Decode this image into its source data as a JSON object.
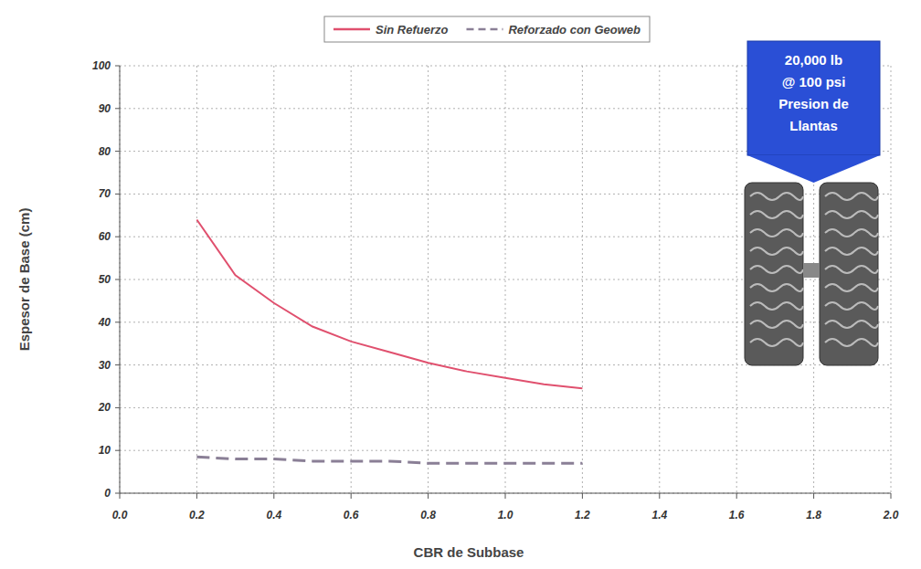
{
  "chart_data": {
    "type": "line",
    "x_label": "CBR de Subbase",
    "y_label": "Espesor de Base (cm)",
    "x": [
      0.2,
      0.3,
      0.4,
      0.5,
      0.6,
      0.7,
      0.8,
      0.9,
      1.0,
      1.1,
      1.2
    ],
    "series": [
      {
        "name": "Sin Refuerzo",
        "color": "#e0506e",
        "line_style": "solid",
        "values": [
          64,
          51,
          44.5,
          39,
          35.5,
          33,
          30.5,
          28.5,
          27,
          25.5,
          24.5
        ]
      },
      {
        "name": "Reforzado con Geoweb",
        "color": "#8a7f96",
        "line_style": "dashed",
        "values": [
          8.5,
          8,
          8,
          7.5,
          7.5,
          7.5,
          7,
          7,
          7,
          7,
          7
        ]
      }
    ],
    "xlim": [
      0,
      2
    ],
    "xticks": [
      {
        "value": 0,
        "label": "0.0"
      },
      0.2,
      0.4,
      0.6,
      0.8,
      {
        "value": 1,
        "label": "1.0"
      },
      1.2,
      1.4,
      1.6,
      1.8,
      {
        "value": 2,
        "label": "2.0"
      }
    ],
    "ylim": [
      0,
      100
    ],
    "yticks": [
      0,
      10,
      20,
      30,
      40,
      50,
      60,
      70,
      80,
      90,
      100
    ],
    "grid": true,
    "legend": "top",
    "annotations": [
      "20,000 lb",
      "@ 100 psi",
      "Presion de",
      "Llantas"
    ]
  }
}
